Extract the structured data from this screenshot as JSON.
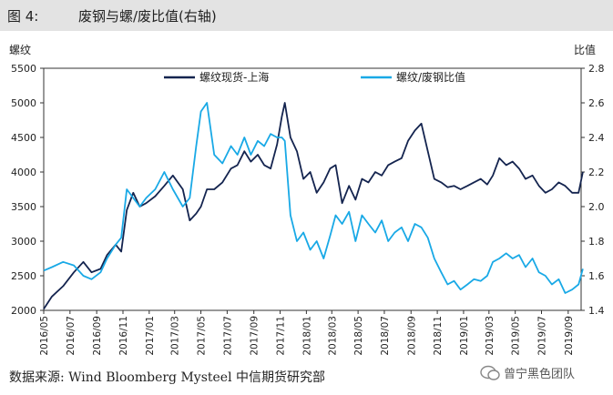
{
  "header": {
    "figure_label": "图 4:",
    "title": "废钢与螺/废比值(右轴)"
  },
  "footer": {
    "source": "数据来源: Wind Bloomberg Mysteel 中信期货研究部",
    "watermark": "曾宁黑色团队"
  },
  "colors": {
    "series_rebar": "#14244f",
    "series_ratio": "#19a9e6",
    "header_bg": "#e3e3e3"
  },
  "chart_data": {
    "type": "line",
    "y_left_label": "螺纹",
    "y_right_label": "比值",
    "y_left_ticks": [
      2000,
      2500,
      3000,
      3500,
      4000,
      4500,
      5000,
      5500
    ],
    "y_right_ticks": [
      1.4,
      1.6,
      1.8,
      2.0,
      2.2,
      2.4,
      2.6,
      2.8
    ],
    "y_left_range": [
      2000,
      5500
    ],
    "y_right_range": [
      1.4,
      2.8
    ],
    "x_range": [
      "2016-05",
      "2019-10"
    ],
    "x_tick_labels": [
      "2016/05",
      "2016/07",
      "2016/09",
      "2016/11",
      "2017/01",
      "2017/03",
      "2017/05",
      "2017/07",
      "2017/09",
      "2017/11",
      "2018/01",
      "2018/03",
      "2018/05",
      "2018/07",
      "2018/09",
      "2018/11",
      "2019/01",
      "2019/03",
      "2019/05",
      "2019/07",
      "2019/09"
    ],
    "legend_position": "top-center",
    "series": [
      {
        "name": "螺纹现货-上海",
        "axis": "left",
        "x": [
          "2016-05-01",
          "2016-05-20",
          "2016-06-15",
          "2016-07-10",
          "2016-08-01",
          "2016-08-20",
          "2016-09-10",
          "2016-09-25",
          "2016-10-15",
          "2016-10-28",
          "2016-11-10",
          "2016-11-25",
          "2016-12-10",
          "2016-12-25",
          "2017-01-15",
          "2017-02-05",
          "2017-02-25",
          "2017-03-20",
          "2017-04-05",
          "2017-04-20",
          "2017-05-01",
          "2017-05-15",
          "2017-06-01",
          "2017-06-20",
          "2017-07-10",
          "2017-07-25",
          "2017-08-10",
          "2017-08-25",
          "2017-09-10",
          "2017-09-25",
          "2017-10-10",
          "2017-10-25",
          "2017-11-05",
          "2017-11-12",
          "2017-11-25",
          "2017-12-10",
          "2017-12-25",
          "2018-01-10",
          "2018-01-25",
          "2018-02-10",
          "2018-02-25",
          "2018-03-10",
          "2018-03-25",
          "2018-04-10",
          "2018-04-25",
          "2018-05-10",
          "2018-05-25",
          "2018-06-10",
          "2018-06-25",
          "2018-07-10",
          "2018-07-25",
          "2018-08-10",
          "2018-08-25",
          "2018-09-10",
          "2018-09-25",
          "2018-10-10",
          "2018-10-25",
          "2018-11-10",
          "2018-11-25",
          "2018-12-10",
          "2018-12-25",
          "2019-01-10",
          "2019-01-25",
          "2019-02-10",
          "2019-02-25",
          "2019-03-10",
          "2019-03-25",
          "2019-04-10",
          "2019-04-25",
          "2019-05-10",
          "2019-05-25",
          "2019-06-10",
          "2019-06-25",
          "2019-07-10",
          "2019-07-25",
          "2019-08-10",
          "2019-08-25",
          "2019-09-10",
          "2019-09-25",
          "2019-10-05"
        ],
        "values": [
          2020,
          2200,
          2350,
          2550,
          2700,
          2550,
          2600,
          2800,
          2950,
          2850,
          3450,
          3700,
          3500,
          3550,
          3650,
          3800,
          3950,
          3750,
          3300,
          3400,
          3500,
          3750,
          3750,
          3850,
          4050,
          4100,
          4300,
          4150,
          4250,
          4100,
          4050,
          4400,
          4800,
          5000,
          4500,
          4300,
          3900,
          4000,
          3700,
          3850,
          4050,
          4100,
          3550,
          3800,
          3600,
          3900,
          3850,
          4000,
          3950,
          4100,
          4150,
          4200,
          4450,
          4600,
          4700,
          4300,
          3900,
          3850,
          3780,
          3800,
          3750,
          3800,
          3850,
          3900,
          3820,
          3950,
          4200,
          4100,
          4150,
          4050,
          3900,
          3950,
          3800,
          3700,
          3750,
          3850,
          3800,
          3700,
          3700,
          4000
        ]
      },
      {
        "name": "螺纹/废钢比值",
        "axis": "right",
        "x": [
          "2016-05-01",
          "2016-05-20",
          "2016-06-15",
          "2016-07-10",
          "2016-08-01",
          "2016-08-20",
          "2016-09-10",
          "2016-09-25",
          "2016-10-15",
          "2016-10-28",
          "2016-11-10",
          "2016-11-25",
          "2016-12-10",
          "2016-12-25",
          "2017-01-15",
          "2017-02-05",
          "2017-02-25",
          "2017-03-20",
          "2017-04-05",
          "2017-04-20",
          "2017-05-01",
          "2017-05-15",
          "2017-06-01",
          "2017-06-20",
          "2017-07-10",
          "2017-07-25",
          "2017-08-10",
          "2017-08-25",
          "2017-09-10",
          "2017-09-25",
          "2017-10-10",
          "2017-10-25",
          "2017-11-05",
          "2017-11-12",
          "2017-11-25",
          "2017-12-10",
          "2017-12-25",
          "2018-01-10",
          "2018-01-25",
          "2018-02-10",
          "2018-02-25",
          "2018-03-10",
          "2018-03-25",
          "2018-04-10",
          "2018-04-25",
          "2018-05-10",
          "2018-05-25",
          "2018-06-10",
          "2018-06-25",
          "2018-07-10",
          "2018-07-25",
          "2018-08-10",
          "2018-08-25",
          "2018-09-10",
          "2018-09-25",
          "2018-10-10",
          "2018-10-25",
          "2018-11-10",
          "2018-11-25",
          "2018-12-10",
          "2018-12-25",
          "2019-01-10",
          "2019-01-25",
          "2019-02-10",
          "2019-02-25",
          "2019-03-10",
          "2019-03-25",
          "2019-04-10",
          "2019-04-25",
          "2019-05-10",
          "2019-05-25",
          "2019-06-10",
          "2019-06-25",
          "2019-07-10",
          "2019-07-25",
          "2019-08-10",
          "2019-08-25",
          "2019-09-10",
          "2019-09-25",
          "2019-10-05"
        ],
        "values": [
          1.63,
          1.65,
          1.68,
          1.66,
          1.6,
          1.58,
          1.62,
          1.7,
          1.78,
          1.82,
          2.1,
          2.05,
          2.0,
          2.05,
          2.1,
          2.2,
          2.1,
          2.0,
          2.05,
          2.35,
          2.55,
          2.6,
          2.3,
          2.25,
          2.35,
          2.3,
          2.4,
          2.3,
          2.38,
          2.35,
          2.42,
          2.4,
          2.4,
          2.38,
          1.95,
          1.8,
          1.85,
          1.75,
          1.8,
          1.7,
          1.83,
          1.95,
          1.9,
          1.97,
          1.8,
          1.95,
          1.9,
          1.85,
          1.92,
          1.8,
          1.85,
          1.88,
          1.8,
          1.9,
          1.88,
          1.82,
          1.7,
          1.62,
          1.55,
          1.57,
          1.52,
          1.55,
          1.58,
          1.57,
          1.6,
          1.68,
          1.7,
          1.73,
          1.7,
          1.72,
          1.65,
          1.7,
          1.62,
          1.6,
          1.55,
          1.58,
          1.5,
          1.52,
          1.55,
          1.64
        ]
      }
    ]
  }
}
